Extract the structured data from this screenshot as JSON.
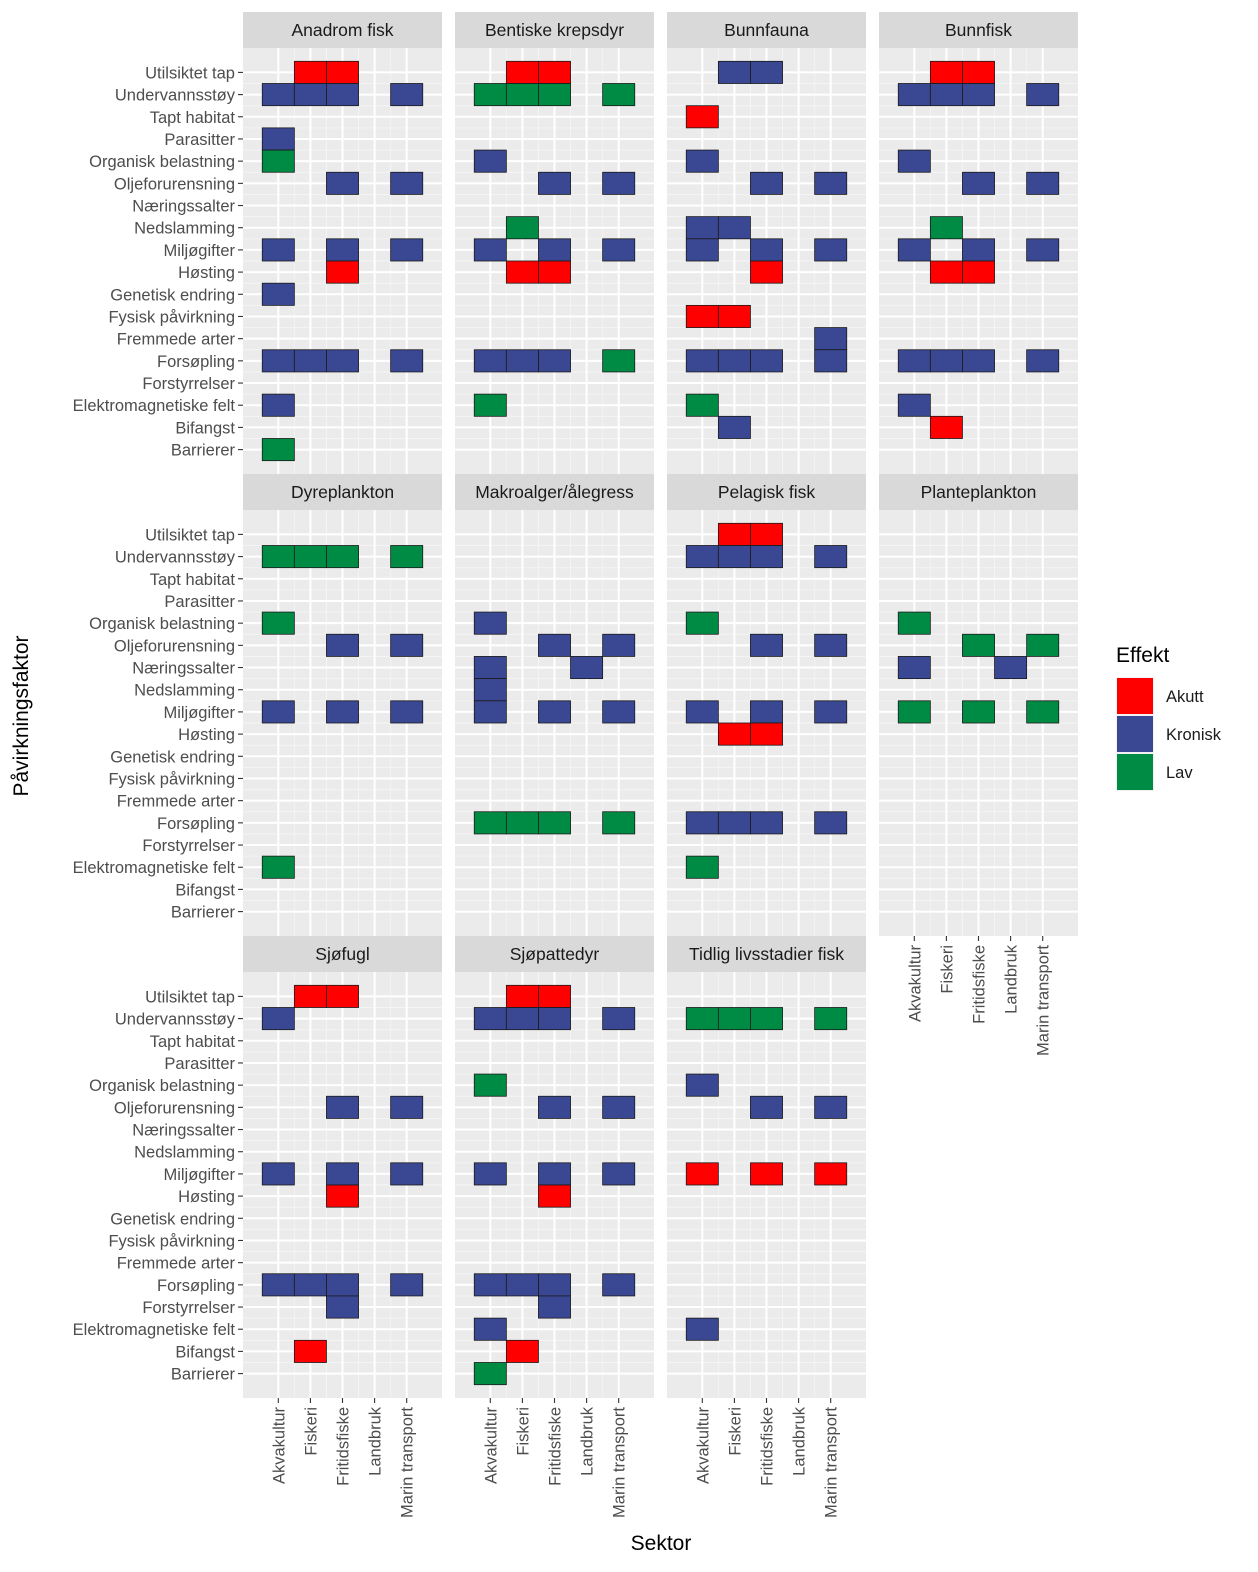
{
  "chart_data": {
    "type": "heatmap",
    "xlabel": "Sektor",
    "ylabel": "Påvirkningsfaktor",
    "sectors": [
      "Akvakultur",
      "Fiskeri",
      "Fritidsfiske",
      "Landbruk",
      "Marin transport"
    ],
    "factors": [
      "Utilsiktet tap",
      "Undervannsstøy",
      "Tapt habitat",
      "Parasitter",
      "Organisk belastning",
      "Oljeforurensning",
      "Næringssalter",
      "Nedslamming",
      "Miljøgifter",
      "Høsting",
      "Genetisk endring",
      "Fysisk påvirkning",
      "Fremmede arter",
      "Forsøpling",
      "Forstyrrelser",
      "Elektromagnetiske felt",
      "Bifangst",
      "Barrierer"
    ],
    "legend": {
      "title": "Effekt",
      "position": "right",
      "levels": [
        {
          "key": "A",
          "label": "Akutt",
          "color": "#ff0000"
        },
        {
          "key": "K",
          "label": "Kronisk",
          "color": "#3a4893"
        },
        {
          "key": "L",
          "label": "Lav",
          "color": "#008b45"
        }
      ]
    },
    "panels": [
      {
        "title": "Anadrom fisk",
        "cells": [
          [
            "Utilsiktet tap",
            "Fiskeri",
            "A"
          ],
          [
            "Utilsiktet tap",
            "Fritidsfiske",
            "A"
          ],
          [
            "Undervannsstøy",
            "Akvakultur",
            "K"
          ],
          [
            "Undervannsstøy",
            "Fiskeri",
            "K"
          ],
          [
            "Undervannsstøy",
            "Fritidsfiske",
            "K"
          ],
          [
            "Undervannsstøy",
            "Marin transport",
            "K"
          ],
          [
            "Parasitter",
            "Akvakultur",
            "K"
          ],
          [
            "Organisk belastning",
            "Akvakultur",
            "L"
          ],
          [
            "Oljeforurensning",
            "Fritidsfiske",
            "K"
          ],
          [
            "Oljeforurensning",
            "Marin transport",
            "K"
          ],
          [
            "Miljøgifter",
            "Akvakultur",
            "K"
          ],
          [
            "Miljøgifter",
            "Fritidsfiske",
            "K"
          ],
          [
            "Miljøgifter",
            "Marin transport",
            "K"
          ],
          [
            "Høsting",
            "Fritidsfiske",
            "A"
          ],
          [
            "Genetisk endring",
            "Akvakultur",
            "K"
          ],
          [
            "Forsøpling",
            "Akvakultur",
            "K"
          ],
          [
            "Forsøpling",
            "Fiskeri",
            "K"
          ],
          [
            "Forsøpling",
            "Fritidsfiske",
            "K"
          ],
          [
            "Forsøpling",
            "Marin transport",
            "K"
          ],
          [
            "Elektromagnetiske felt",
            "Akvakultur",
            "K"
          ],
          [
            "Barrierer",
            "Akvakultur",
            "L"
          ]
        ]
      },
      {
        "title": "Bentiske krepsdyr",
        "cells": [
          [
            "Utilsiktet tap",
            "Fiskeri",
            "A"
          ],
          [
            "Utilsiktet tap",
            "Fritidsfiske",
            "A"
          ],
          [
            "Undervannsstøy",
            "Akvakultur",
            "L"
          ],
          [
            "Undervannsstøy",
            "Fiskeri",
            "L"
          ],
          [
            "Undervannsstøy",
            "Fritidsfiske",
            "L"
          ],
          [
            "Undervannsstøy",
            "Marin transport",
            "L"
          ],
          [
            "Organisk belastning",
            "Akvakultur",
            "K"
          ],
          [
            "Oljeforurensning",
            "Fritidsfiske",
            "K"
          ],
          [
            "Oljeforurensning",
            "Marin transport",
            "K"
          ],
          [
            "Nedslamming",
            "Fiskeri",
            "L"
          ],
          [
            "Miljøgifter",
            "Akvakultur",
            "K"
          ],
          [
            "Miljøgifter",
            "Fritidsfiske",
            "K"
          ],
          [
            "Miljøgifter",
            "Marin transport",
            "K"
          ],
          [
            "Høsting",
            "Fiskeri",
            "A"
          ],
          [
            "Høsting",
            "Fritidsfiske",
            "A"
          ],
          [
            "Forsøpling",
            "Akvakultur",
            "K"
          ],
          [
            "Forsøpling",
            "Fiskeri",
            "K"
          ],
          [
            "Forsøpling",
            "Fritidsfiske",
            "K"
          ],
          [
            "Forsøpling",
            "Marin transport",
            "L"
          ],
          [
            "Elektromagnetiske felt",
            "Akvakultur",
            "L"
          ]
        ]
      },
      {
        "title": "Bunnfauna",
        "cells": [
          [
            "Utilsiktet tap",
            "Fiskeri",
            "K"
          ],
          [
            "Utilsiktet tap",
            "Fritidsfiske",
            "K"
          ],
          [
            "Tapt habitat",
            "Akvakultur",
            "A"
          ],
          [
            "Organisk belastning",
            "Akvakultur",
            "K"
          ],
          [
            "Oljeforurensning",
            "Fritidsfiske",
            "K"
          ],
          [
            "Oljeforurensning",
            "Marin transport",
            "K"
          ],
          [
            "Nedslamming",
            "Akvakultur",
            "K"
          ],
          [
            "Nedslamming",
            "Fiskeri",
            "K"
          ],
          [
            "Miljøgifter",
            "Akvakultur",
            "K"
          ],
          [
            "Miljøgifter",
            "Fritidsfiske",
            "K"
          ],
          [
            "Miljøgifter",
            "Marin transport",
            "K"
          ],
          [
            "Høsting",
            "Fritidsfiske",
            "A"
          ],
          [
            "Fysisk påvirkning",
            "Akvakultur",
            "A"
          ],
          [
            "Fysisk påvirkning",
            "Fiskeri",
            "A"
          ],
          [
            "Fremmede arter",
            "Marin transport",
            "K"
          ],
          [
            "Forsøpling",
            "Akvakultur",
            "K"
          ],
          [
            "Forsøpling",
            "Fiskeri",
            "K"
          ],
          [
            "Forsøpling",
            "Fritidsfiske",
            "K"
          ],
          [
            "Forsøpling",
            "Marin transport",
            "K"
          ],
          [
            "Elektromagnetiske felt",
            "Akvakultur",
            "L"
          ],
          [
            "Bifangst",
            "Fiskeri",
            "K"
          ]
        ]
      },
      {
        "title": "Bunnfisk",
        "cells": [
          [
            "Utilsiktet tap",
            "Fiskeri",
            "A"
          ],
          [
            "Utilsiktet tap",
            "Fritidsfiske",
            "A"
          ],
          [
            "Undervannsstøy",
            "Akvakultur",
            "K"
          ],
          [
            "Undervannsstøy",
            "Fiskeri",
            "K"
          ],
          [
            "Undervannsstøy",
            "Fritidsfiske",
            "K"
          ],
          [
            "Undervannsstøy",
            "Marin transport",
            "K"
          ],
          [
            "Organisk belastning",
            "Akvakultur",
            "K"
          ],
          [
            "Oljeforurensning",
            "Fritidsfiske",
            "K"
          ],
          [
            "Oljeforurensning",
            "Marin transport",
            "K"
          ],
          [
            "Nedslamming",
            "Fiskeri",
            "L"
          ],
          [
            "Miljøgifter",
            "Akvakultur",
            "K"
          ],
          [
            "Miljøgifter",
            "Fritidsfiske",
            "K"
          ],
          [
            "Miljøgifter",
            "Marin transport",
            "K"
          ],
          [
            "Høsting",
            "Fiskeri",
            "A"
          ],
          [
            "Høsting",
            "Fritidsfiske",
            "A"
          ],
          [
            "Forsøpling",
            "Akvakultur",
            "K"
          ],
          [
            "Forsøpling",
            "Fiskeri",
            "K"
          ],
          [
            "Forsøpling",
            "Fritidsfiske",
            "K"
          ],
          [
            "Forsøpling",
            "Marin transport",
            "K"
          ],
          [
            "Elektromagnetiske felt",
            "Akvakultur",
            "K"
          ],
          [
            "Bifangst",
            "Fiskeri",
            "A"
          ]
        ]
      },
      {
        "title": "Dyreplankton",
        "cells": [
          [
            "Undervannsstøy",
            "Akvakultur",
            "L"
          ],
          [
            "Undervannsstøy",
            "Fiskeri",
            "L"
          ],
          [
            "Undervannsstøy",
            "Fritidsfiske",
            "L"
          ],
          [
            "Undervannsstøy",
            "Marin transport",
            "L"
          ],
          [
            "Organisk belastning",
            "Akvakultur",
            "L"
          ],
          [
            "Oljeforurensning",
            "Fritidsfiske",
            "K"
          ],
          [
            "Oljeforurensning",
            "Marin transport",
            "K"
          ],
          [
            "Miljøgifter",
            "Akvakultur",
            "K"
          ],
          [
            "Miljøgifter",
            "Fritidsfiske",
            "K"
          ],
          [
            "Miljøgifter",
            "Marin transport",
            "K"
          ],
          [
            "Elektromagnetiske felt",
            "Akvakultur",
            "L"
          ]
        ]
      },
      {
        "title": "Makroalger/ålegress",
        "cells": [
          [
            "Organisk belastning",
            "Akvakultur",
            "K"
          ],
          [
            "Oljeforurensning",
            "Fritidsfiske",
            "K"
          ],
          [
            "Oljeforurensning",
            "Marin transport",
            "K"
          ],
          [
            "Næringssalter",
            "Akvakultur",
            "K"
          ],
          [
            "Næringssalter",
            "Landbruk",
            "K"
          ],
          [
            "Nedslamming",
            "Akvakultur",
            "K"
          ],
          [
            "Miljøgifter",
            "Akvakultur",
            "K"
          ],
          [
            "Miljøgifter",
            "Fritidsfiske",
            "K"
          ],
          [
            "Miljøgifter",
            "Marin transport",
            "K"
          ],
          [
            "Forsøpling",
            "Akvakultur",
            "L"
          ],
          [
            "Forsøpling",
            "Fiskeri",
            "L"
          ],
          [
            "Forsøpling",
            "Fritidsfiske",
            "L"
          ],
          [
            "Forsøpling",
            "Marin transport",
            "L"
          ]
        ]
      },
      {
        "title": "Pelagisk fisk",
        "cells": [
          [
            "Utilsiktet tap",
            "Fiskeri",
            "A"
          ],
          [
            "Utilsiktet tap",
            "Fritidsfiske",
            "A"
          ],
          [
            "Undervannsstøy",
            "Akvakultur",
            "K"
          ],
          [
            "Undervannsstøy",
            "Fiskeri",
            "K"
          ],
          [
            "Undervannsstøy",
            "Fritidsfiske",
            "K"
          ],
          [
            "Undervannsstøy",
            "Marin transport",
            "K"
          ],
          [
            "Organisk belastning",
            "Akvakultur",
            "L"
          ],
          [
            "Oljeforurensning",
            "Fritidsfiske",
            "K"
          ],
          [
            "Oljeforurensning",
            "Marin transport",
            "K"
          ],
          [
            "Miljøgifter",
            "Akvakultur",
            "K"
          ],
          [
            "Miljøgifter",
            "Fritidsfiske",
            "K"
          ],
          [
            "Miljøgifter",
            "Marin transport",
            "K"
          ],
          [
            "Høsting",
            "Fiskeri",
            "A"
          ],
          [
            "Høsting",
            "Fritidsfiske",
            "A"
          ],
          [
            "Forsøpling",
            "Akvakultur",
            "K"
          ],
          [
            "Forsøpling",
            "Fiskeri",
            "K"
          ],
          [
            "Forsøpling",
            "Fritidsfiske",
            "K"
          ],
          [
            "Forsøpling",
            "Marin transport",
            "K"
          ],
          [
            "Elektromagnetiske felt",
            "Akvakultur",
            "L"
          ]
        ]
      },
      {
        "title": "Planteplankton",
        "cells": [
          [
            "Organisk belastning",
            "Akvakultur",
            "L"
          ],
          [
            "Oljeforurensning",
            "Fritidsfiske",
            "L"
          ],
          [
            "Oljeforurensning",
            "Marin transport",
            "L"
          ],
          [
            "Næringssalter",
            "Akvakultur",
            "K"
          ],
          [
            "Næringssalter",
            "Landbruk",
            "K"
          ],
          [
            "Miljøgifter",
            "Akvakultur",
            "L"
          ],
          [
            "Miljøgifter",
            "Fritidsfiske",
            "L"
          ],
          [
            "Miljøgifter",
            "Marin transport",
            "L"
          ]
        ]
      },
      {
        "title": "Sjøfugl",
        "cells": [
          [
            "Utilsiktet tap",
            "Fiskeri",
            "A"
          ],
          [
            "Utilsiktet tap",
            "Fritidsfiske",
            "A"
          ],
          [
            "Undervannsstøy",
            "Akvakultur",
            "K"
          ],
          [
            "Oljeforurensning",
            "Fritidsfiske",
            "K"
          ],
          [
            "Oljeforurensning",
            "Marin transport",
            "K"
          ],
          [
            "Miljøgifter",
            "Akvakultur",
            "K"
          ],
          [
            "Miljøgifter",
            "Fritidsfiske",
            "K"
          ],
          [
            "Miljøgifter",
            "Marin transport",
            "K"
          ],
          [
            "Høsting",
            "Fritidsfiske",
            "A"
          ],
          [
            "Forsøpling",
            "Akvakultur",
            "K"
          ],
          [
            "Forsøpling",
            "Fiskeri",
            "K"
          ],
          [
            "Forsøpling",
            "Fritidsfiske",
            "K"
          ],
          [
            "Forsøpling",
            "Marin transport",
            "K"
          ],
          [
            "Forstyrrelser",
            "Fritidsfiske",
            "K"
          ],
          [
            "Bifangst",
            "Fiskeri",
            "A"
          ]
        ]
      },
      {
        "title": "Sjøpattedyr",
        "cells": [
          [
            "Utilsiktet tap",
            "Fiskeri",
            "A"
          ],
          [
            "Utilsiktet tap",
            "Fritidsfiske",
            "A"
          ],
          [
            "Undervannsstøy",
            "Akvakultur",
            "K"
          ],
          [
            "Undervannsstøy",
            "Fiskeri",
            "K"
          ],
          [
            "Undervannsstøy",
            "Fritidsfiske",
            "K"
          ],
          [
            "Undervannsstøy",
            "Marin transport",
            "K"
          ],
          [
            "Organisk belastning",
            "Akvakultur",
            "L"
          ],
          [
            "Oljeforurensning",
            "Fritidsfiske",
            "K"
          ],
          [
            "Oljeforurensning",
            "Marin transport",
            "K"
          ],
          [
            "Miljøgifter",
            "Akvakultur",
            "K"
          ],
          [
            "Miljøgifter",
            "Fritidsfiske",
            "K"
          ],
          [
            "Miljøgifter",
            "Marin transport",
            "K"
          ],
          [
            "Høsting",
            "Fritidsfiske",
            "A"
          ],
          [
            "Forsøpling",
            "Akvakultur",
            "K"
          ],
          [
            "Forsøpling",
            "Fiskeri",
            "K"
          ],
          [
            "Forsøpling",
            "Fritidsfiske",
            "K"
          ],
          [
            "Forsøpling",
            "Marin transport",
            "K"
          ],
          [
            "Forstyrrelser",
            "Fritidsfiske",
            "K"
          ],
          [
            "Elektromagnetiske felt",
            "Akvakultur",
            "K"
          ],
          [
            "Bifangst",
            "Fiskeri",
            "A"
          ],
          [
            "Barrierer",
            "Akvakultur",
            "L"
          ]
        ]
      },
      {
        "title": "Tidlig livsstadier fisk",
        "cells": [
          [
            "Undervannsstøy",
            "Akvakultur",
            "L"
          ],
          [
            "Undervannsstøy",
            "Fiskeri",
            "L"
          ],
          [
            "Undervannsstøy",
            "Fritidsfiske",
            "L"
          ],
          [
            "Undervannsstøy",
            "Marin transport",
            "L"
          ],
          [
            "Organisk belastning",
            "Akvakultur",
            "K"
          ],
          [
            "Oljeforurensning",
            "Fritidsfiske",
            "K"
          ],
          [
            "Oljeforurensning",
            "Marin transport",
            "K"
          ],
          [
            "Miljøgifter",
            "Akvakultur",
            "A"
          ],
          [
            "Miljøgifter",
            "Fritidsfiske",
            "A"
          ],
          [
            "Miljøgifter",
            "Marin transport",
            "A"
          ],
          [
            "Elektromagnetiske felt",
            "Akvakultur",
            "K"
          ]
        ]
      }
    ]
  }
}
